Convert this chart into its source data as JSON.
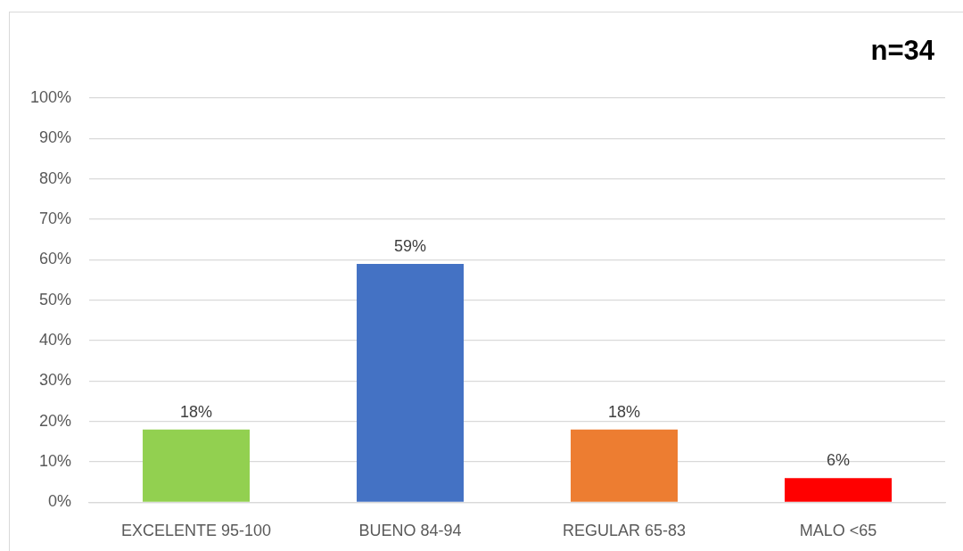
{
  "chart_data": {
    "type": "bar",
    "categories": [
      "EXCELENTE 95-100",
      "BUENO 84-94",
      "REGULAR 65-83",
      "MALO <65"
    ],
    "values": [
      18,
      59,
      18,
      6
    ],
    "colors": [
      "#92d050",
      "#4472c4",
      "#ed7d31",
      "#ff0000"
    ],
    "value_labels": [
      "18%",
      "59%",
      "18%",
      "6%"
    ],
    "ylim": [
      0,
      100
    ],
    "yticks": [
      {
        "value": 0,
        "label": "0%"
      },
      {
        "value": 10,
        "label": "10%"
      },
      {
        "value": 20,
        "label": "20%"
      },
      {
        "value": 30,
        "label": "30%"
      },
      {
        "value": 40,
        "label": "40%"
      },
      {
        "value": 50,
        "label": "50%"
      },
      {
        "value": 60,
        "label": "60%"
      },
      {
        "value": 70,
        "label": "70%"
      },
      {
        "value": 80,
        "label": "80%"
      },
      {
        "value": 90,
        "label": "90%"
      },
      {
        "value": 100,
        "label": "100%"
      }
    ],
    "grid": "y",
    "annotations": [
      "n=34"
    ]
  }
}
